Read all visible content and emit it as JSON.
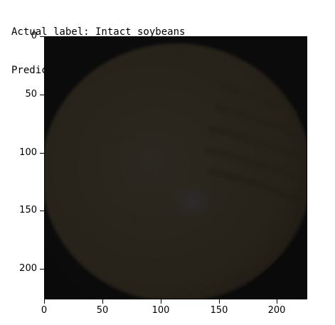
{
  "header": {
    "actual_label": "Actual label: Intact soybeans",
    "prediction": "Prediction: Intact soybeans"
  },
  "image": {
    "content": "soybean-photo",
    "colors": {
      "background": "#0e0e0e",
      "bean_light": "#e6c88f",
      "bean_mid": "#cfae73",
      "bean_shadow": "#9a7a48",
      "highlight": "#f2f0ff"
    }
  },
  "axes": {
    "x_ticks": [
      "0",
      "50",
      "100",
      "150",
      "200"
    ],
    "y_ticks": [
      "0",
      "50",
      "100",
      "150",
      "200"
    ],
    "x_range": [
      0,
      227
    ],
    "y_range": [
      0,
      227
    ]
  }
}
